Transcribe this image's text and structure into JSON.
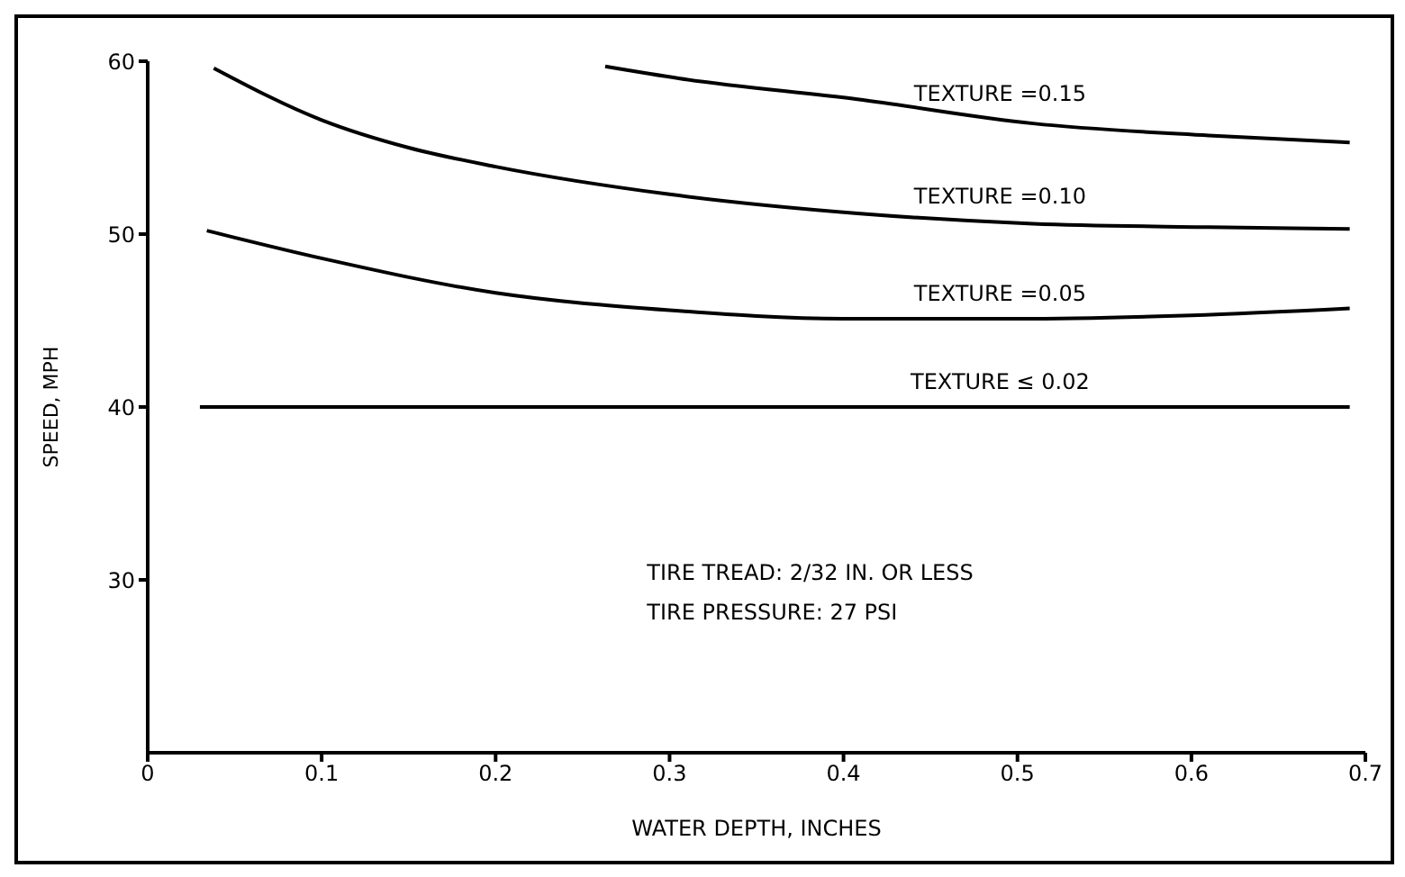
{
  "chart_data": {
    "type": "line",
    "xlabel": "WATER DEPTH, INCHES",
    "ylabel": "SPEED, MPH",
    "xlim": [
      0,
      0.7
    ],
    "xticks": [
      0,
      0.1,
      0.2,
      0.3,
      0.4,
      0.5,
      0.6,
      0.7
    ],
    "ylim": [
      20,
      60
    ],
    "yticks": [
      30,
      40,
      50,
      60
    ],
    "marker": "none",
    "line_style": "solid",
    "series": [
      {
        "name": "TEXTURE =0.15",
        "color": "#000000",
        "x": [
          0.263,
          0.306,
          0.408,
          0.509,
          0.61,
          0.691
        ],
        "values": [
          59.7,
          59.0,
          57.8,
          56.4,
          55.7,
          55.3
        ]
      },
      {
        "name": "TEXTURE =0.10",
        "color": "#000000",
        "x": [
          0.038,
          0.1,
          0.15,
          0.2,
          0.3,
          0.408,
          0.509,
          0.61,
          0.691
        ],
        "values": [
          59.6,
          56.6,
          55.0,
          53.9,
          52.3,
          51.2,
          50.6,
          50.4,
          50.3
        ]
      },
      {
        "name": "TEXTURE =0.05",
        "color": "#000000",
        "x": [
          0.034,
          0.1,
          0.2,
          0.3,
          0.4,
          0.5,
          0.6,
          0.691
        ],
        "values": [
          50.2,
          48.6,
          46.6,
          45.6,
          45.1,
          45.1,
          45.3,
          45.7
        ]
      },
      {
        "name": "TEXTURE ≤ 0.02",
        "color": "#000000",
        "x": [
          0.03,
          0.691
        ],
        "values": [
          40,
          40
        ]
      }
    ],
    "annotations": [
      "TIRE TREAD: 2/32 IN. OR LESS",
      "TIRE PRESSURE: 27 PSI"
    ]
  }
}
